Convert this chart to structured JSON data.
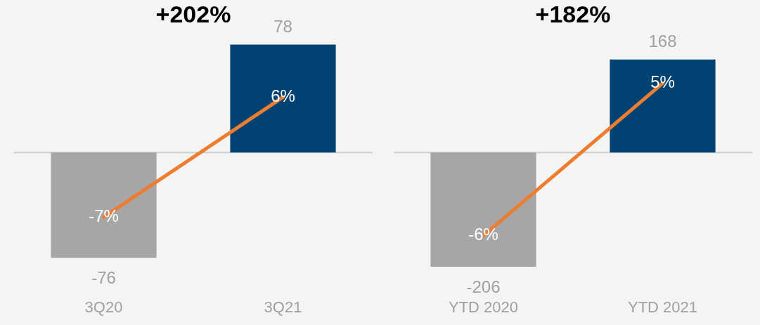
{
  "chart_data": [
    {
      "type": "bar",
      "categories": [
        "3Q20",
        "3Q21"
      ],
      "series": [
        {
          "values": [
            -76,
            78
          ],
          "colors": [
            "#a6a6a6",
            "#004372"
          ]
        },
        {
          "type": "line",
          "axis": "y2",
          "color": "#ed7d31",
          "values": [
            -7,
            6
          ],
          "value_labels": [
            "-7%",
            "6%"
          ]
        }
      ],
      "data_labels": true,
      "annotations": [
        "+202%"
      ],
      "tick_labels": "x",
      "grid": false,
      "legend": false,
      "marker": "none"
    },
    {
      "type": "bar",
      "categories": [
        "YTD 2020",
        "YTD 2021"
      ],
      "series": [
        {
          "values": [
            -206,
            168
          ],
          "colors": [
            "#a6a6a6",
            "#004372"
          ]
        },
        {
          "type": "line",
          "axis": "y2",
          "color": "#ed7d31",
          "values": [
            -6,
            5
          ],
          "value_labels": [
            "-6%",
            "5%"
          ]
        }
      ],
      "data_labels": true,
      "annotations": [
        "+182%"
      ],
      "tick_labels": "x",
      "grid": false,
      "legend": false,
      "marker": "none"
    }
  ]
}
